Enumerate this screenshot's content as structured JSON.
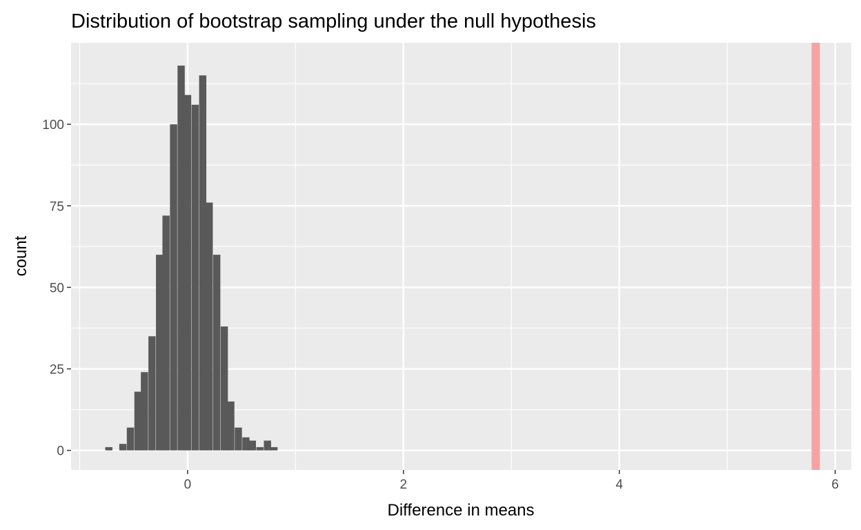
{
  "chart_data": {
    "type": "histogram",
    "title": "Distribution of bootstrap sampling under the null hypothesis",
    "xlabel": "Difference in means",
    "ylabel": "count",
    "xlim": [
      -1.08,
      6.15
    ],
    "ylim": [
      -6,
      125
    ],
    "x_ticks": [
      0,
      2,
      4,
      6
    ],
    "x_minor_ticks": [
      -1,
      1,
      3,
      5
    ],
    "y_ticks": [
      0,
      25,
      50,
      75,
      100
    ],
    "y_minor_ticks": [
      12.5,
      37.5,
      62.5,
      87.5,
      112.5
    ],
    "grid": true,
    "bin_width": 0.0667,
    "bins": [
      {
        "x": -0.73,
        "count": 1
      },
      {
        "x": -0.6,
        "count": 2
      },
      {
        "x": -0.53,
        "count": 7
      },
      {
        "x": -0.46,
        "count": 18
      },
      {
        "x": -0.4,
        "count": 24
      },
      {
        "x": -0.33,
        "count": 35
      },
      {
        "x": -0.26,
        "count": 60
      },
      {
        "x": -0.2,
        "count": 72
      },
      {
        "x": -0.13,
        "count": 100
      },
      {
        "x": -0.06,
        "count": 118
      },
      {
        "x": 0.0,
        "count": 109
      },
      {
        "x": 0.07,
        "count": 106
      },
      {
        "x": 0.14,
        "count": 115
      },
      {
        "x": 0.2,
        "count": 76
      },
      {
        "x": 0.27,
        "count": 60
      },
      {
        "x": 0.34,
        "count": 38
      },
      {
        "x": 0.4,
        "count": 15
      },
      {
        "x": 0.47,
        "count": 7
      },
      {
        "x": 0.54,
        "count": 4
      },
      {
        "x": 0.6,
        "count": 3
      },
      {
        "x": 0.67,
        "count": 1
      },
      {
        "x": 0.74,
        "count": 3
      },
      {
        "x": 0.8,
        "count": 1
      }
    ],
    "vline": {
      "x": 5.82,
      "color": "#f8a3a3"
    },
    "colors": {
      "bar": "#595959",
      "panel": "#ebebeb",
      "grid": "#ffffff"
    }
  }
}
